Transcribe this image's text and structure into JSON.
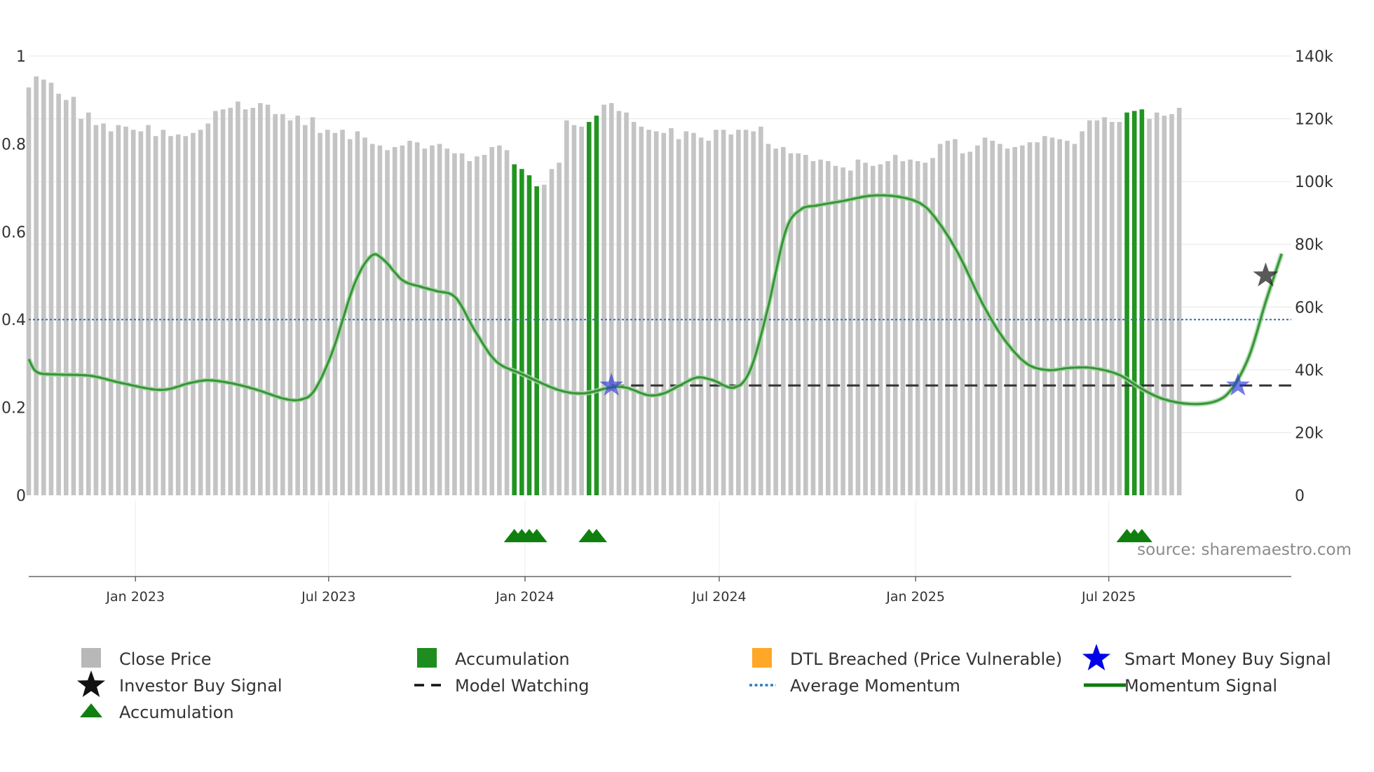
{
  "chart_data": {
    "type": "bar",
    "title": "",
    "source_note": "source: sharemaestro.com",
    "x_axis": {
      "start": "2022-09-23",
      "end": "2025-12-19",
      "date_ticks": [
        {
          "date": "2023-01-01",
          "label": "Jan 2023"
        },
        {
          "date": "2023-07-01",
          "label": "Jul 2023"
        },
        {
          "date": "2024-01-01",
          "label": "Jan 2024"
        },
        {
          "date": "2024-07-01",
          "label": "Jul 2024"
        },
        {
          "date": "2025-01-01",
          "label": "Jan 2025"
        },
        {
          "date": "2025-07-01",
          "label": "Jul 2025"
        }
      ]
    },
    "y_left": {
      "range": [
        0,
        1
      ],
      "ticks": [
        0,
        0.2,
        0.4,
        0.6,
        0.8,
        1
      ],
      "tick_labels": [
        "0",
        "0.2",
        "0.4",
        "0.6",
        "0.8",
        "1"
      ]
    },
    "y_right": {
      "range": [
        0,
        140000
      ],
      "ticks": [
        0,
        20000,
        40000,
        60000,
        80000,
        100000,
        120000,
        140000
      ],
      "tick_labels": [
        "0",
        "20k",
        "40k",
        "60k",
        "80k",
        "100k",
        "120k",
        "140k"
      ]
    },
    "series": [
      {
        "name": "Close Price",
        "type": "bar",
        "axis": "right",
        "color": "#c4c4c4",
        "accumulation_color": "#229422",
        "start_date": "2022-09-23",
        "interval_days": 7,
        "values": [
          130000,
          133500,
          132500,
          131500,
          128000,
          126000,
          127000,
          120000,
          122000,
          118000,
          118500,
          116000,
          118000,
          117500,
          116500,
          116000,
          118000,
          114500,
          116500,
          114500,
          115000,
          114500,
          115500,
          116500,
          118500,
          122500,
          123000,
          123500,
          125500,
          123000,
          123500,
          125000,
          124500,
          121500,
          121500,
          119500,
          121000,
          118000,
          120500,
          115500,
          116500,
          115500,
          116500,
          113500,
          116000,
          114000,
          112000,
          111500,
          110000,
          111000,
          111500,
          113000,
          112500,
          110500,
          111500,
          112000,
          110500,
          109000,
          109000,
          106500,
          108000,
          108500,
          111000,
          111500,
          110000,
          105500,
          104000,
          102000,
          98500,
          99000,
          104000,
          106000,
          119500,
          118000,
          117500,
          119000,
          121000,
          124500,
          125000,
          122500,
          122000,
          119000,
          117500,
          116500,
          116000,
          115500,
          117000,
          113500,
          116000,
          115500,
          114000,
          113000,
          116500,
          116500,
          115000,
          116500,
          116500,
          116000,
          117500,
          112000,
          110500,
          111000,
          109000,
          109000,
          108500,
          106500,
          107000,
          106500,
          105000,
          104500,
          103500,
          107000,
          106000,
          105000,
          105500,
          106500,
          108500,
          106500,
          107000,
          106500,
          106000,
          107500,
          112000,
          113000,
          113500,
          109000,
          109500,
          111500,
          114000,
          113000,
          112000,
          110500,
          111000,
          111500,
          112500,
          112500,
          114500,
          114000,
          113500,
          113000,
          112000,
          116000,
          119500,
          119500,
          120500,
          119000,
          119000,
          122000,
          122500,
          123000,
          120000,
          122000,
          121000,
          121500,
          123500
        ],
        "accumulation_weeks": [
          65,
          66,
          67,
          68,
          75,
          76,
          147,
          148,
          149
        ]
      },
      {
        "name": "Momentum Signal",
        "type": "line",
        "axis": "left",
        "color": "#228b22",
        "points": [
          [
            "2022-09-23",
            0.31
          ],
          [
            "2022-10-01",
            0.28
          ],
          [
            "2022-10-20",
            0.275
          ],
          [
            "2022-11-20",
            0.272
          ],
          [
            "2022-12-20",
            0.255
          ],
          [
            "2023-01-25",
            0.24
          ],
          [
            "2023-02-20",
            0.255
          ],
          [
            "2023-03-10",
            0.262
          ],
          [
            "2023-04-01",
            0.255
          ],
          [
            "2023-04-25",
            0.24
          ],
          [
            "2023-05-20",
            0.22
          ],
          [
            "2023-06-05",
            0.218
          ],
          [
            "2023-06-18",
            0.24
          ],
          [
            "2023-07-05",
            0.33
          ],
          [
            "2023-07-25",
            0.48
          ],
          [
            "2023-08-10",
            0.545
          ],
          [
            "2023-08-22",
            0.535
          ],
          [
            "2023-09-08",
            0.49
          ],
          [
            "2023-09-25",
            0.475
          ],
          [
            "2023-10-10",
            0.465
          ],
          [
            "2023-10-28",
            0.45
          ],
          [
            "2023-11-15",
            0.375
          ],
          [
            "2023-12-05",
            0.305
          ],
          [
            "2023-12-30",
            0.275
          ],
          [
            "2024-02-01",
            0.24
          ],
          [
            "2024-02-25",
            0.232
          ],
          [
            "2024-03-20",
            0.245
          ],
          [
            "2024-04-05",
            0.245
          ],
          [
            "2024-04-25",
            0.228
          ],
          [
            "2024-05-10",
            0.232
          ],
          [
            "2024-05-25",
            0.25
          ],
          [
            "2024-06-10",
            0.268
          ],
          [
            "2024-06-25",
            0.262
          ],
          [
            "2024-07-15",
            0.245
          ],
          [
            "2024-07-30",
            0.285
          ],
          [
            "2024-08-15",
            0.42
          ],
          [
            "2024-09-01",
            0.6
          ],
          [
            "2024-09-15",
            0.65
          ],
          [
            "2024-10-01",
            0.66
          ],
          [
            "2024-10-25",
            0.67
          ],
          [
            "2024-11-20",
            0.682
          ],
          [
            "2024-12-15",
            0.68
          ],
          [
            "2025-01-05",
            0.665
          ],
          [
            "2025-01-20",
            0.63
          ],
          [
            "2025-02-10",
            0.55
          ],
          [
            "2025-03-05",
            0.435
          ],
          [
            "2025-03-25",
            0.355
          ],
          [
            "2025-04-15",
            0.3
          ],
          [
            "2025-05-05",
            0.285
          ],
          [
            "2025-05-25",
            0.29
          ],
          [
            "2025-06-15",
            0.29
          ],
          [
            "2025-07-10",
            0.275
          ],
          [
            "2025-07-30",
            0.245
          ],
          [
            "2025-08-20",
            0.22
          ],
          [
            "2025-09-15",
            0.208
          ],
          [
            "2025-10-10",
            0.215
          ],
          [
            "2025-10-25",
            0.245
          ],
          [
            "2025-11-10",
            0.32
          ],
          [
            "2025-11-25",
            0.44
          ],
          [
            "2025-12-10",
            0.55
          ]
        ]
      },
      {
        "name": "Average Momentum",
        "type": "hline",
        "axis": "left",
        "value": 0.4,
        "color": "#3a75b8"
      },
      {
        "name": "Model Watching",
        "type": "hline-segment",
        "axis": "left",
        "value": 0.25,
        "from": "2024-03-22",
        "to": "2025-12-19",
        "color": "#333333"
      },
      {
        "name": "Smart Money Buy Signal",
        "type": "marker",
        "marker": "star",
        "axis": "left",
        "color": "#2b35d6",
        "points": [
          [
            "2024-03-22",
            0.25
          ],
          [
            "2025-10-30",
            0.25
          ]
        ]
      },
      {
        "name": "Investor Buy Signal",
        "type": "marker",
        "marker": "star",
        "axis": "left",
        "color": "#222222",
        "points": [
          [
            "2025-11-25",
            0.5
          ]
        ]
      },
      {
        "name": "Accumulation",
        "type": "marker",
        "marker": "triangle",
        "color": "#0f800f",
        "weeks": [
          65,
          66,
          67,
          68,
          75,
          76,
          147,
          148,
          149
        ]
      }
    ],
    "legend": [
      {
        "label": "Close Price",
        "swatch": "square",
        "color": "#b8b8b8"
      },
      {
        "label": "Accumulation",
        "swatch": "square",
        "color": "#1e8c1e"
      },
      {
        "label": "DTL Breached (Price Vulnerable)",
        "swatch": "square",
        "color": "#ffa726"
      },
      {
        "label": "Smart Money Buy Signal",
        "swatch": "star",
        "color": "#0000e6"
      },
      {
        "label": "Investor Buy Signal",
        "swatch": "star",
        "color": "#111111"
      },
      {
        "label": "Model Watching",
        "swatch": "dash",
        "color": "#111111"
      },
      {
        "label": "Average Momentum",
        "swatch": "dot",
        "color": "#2f7bbd"
      },
      {
        "label": "Momentum Signal",
        "swatch": "line",
        "color": "#0d7a0d"
      },
      {
        "label": "Accumulation",
        "swatch": "triangle",
        "color": "#0f800f"
      }
    ],
    "legend_position": "bottom"
  }
}
